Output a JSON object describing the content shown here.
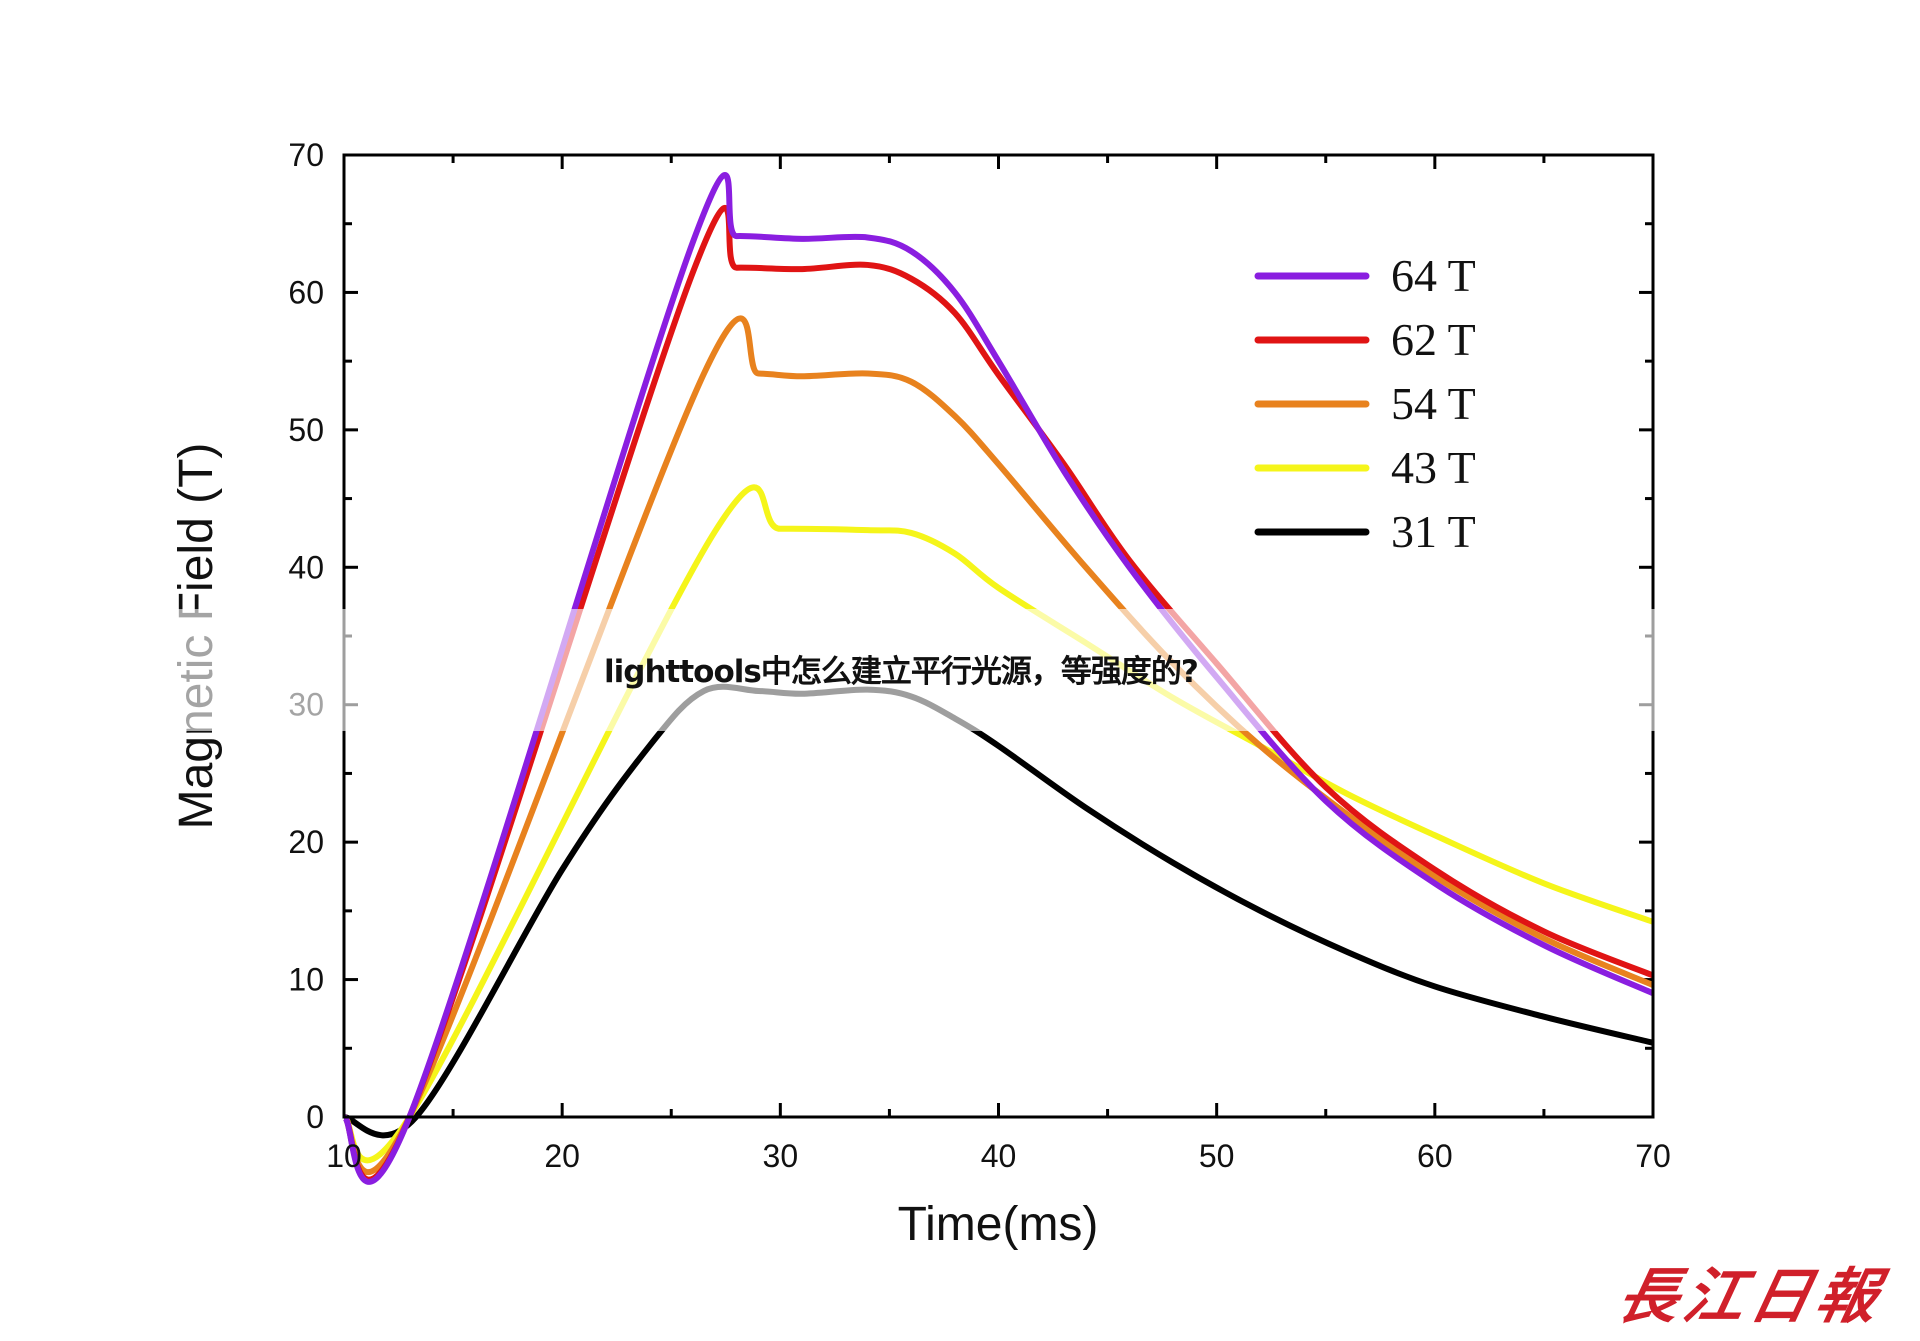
{
  "overlay_title": "lighttools中怎么建立平行光源，等强度的?",
  "watermark": "長江日報",
  "chart_data": {
    "type": "line",
    "title": "",
    "xlabel": "Time(ms)",
    "ylabel": "Magnetic Field (T)",
    "xlim": [
      10,
      70
    ],
    "ylim": [
      0,
      70
    ],
    "xticks": [
      10,
      20,
      30,
      40,
      50,
      60,
      70
    ],
    "yticks": [
      0,
      10,
      20,
      30,
      40,
      50,
      60,
      70
    ],
    "grid": false,
    "legend_position": "top-right",
    "series": [
      {
        "name": "64 T",
        "color": "#8a1ee0",
        "x": [
          10,
          13,
          26,
          28,
          31,
          34,
          36,
          38,
          40,
          43,
          46,
          50,
          55,
          60,
          65,
          70
        ],
        "y": [
          0,
          0,
          63.7,
          64.1,
          63.9,
          64,
          63,
          60,
          55,
          47,
          40,
          32,
          23,
          17,
          12.5,
          9
        ]
      },
      {
        "name": "62 T",
        "color": "#e01414",
        "x": [
          10,
          13,
          26,
          28,
          31,
          34,
          36,
          38,
          40,
          43,
          46,
          50,
          55,
          60,
          65,
          70
        ],
        "y": [
          0,
          0,
          61.5,
          61.8,
          61.7,
          62,
          61,
          58.5,
          54,
          47.5,
          40.5,
          33,
          24,
          18,
          13.5,
          10.3
        ]
      },
      {
        "name": "54 T",
        "color": "#e8821e",
        "x": [
          10,
          13,
          26.5,
          29,
          31,
          34,
          36,
          38,
          40,
          44,
          48,
          52,
          56,
          60,
          65,
          70
        ],
        "y": [
          0,
          0,
          54.1,
          54.1,
          53.9,
          54.1,
          53.5,
          51,
          47.5,
          40,
          33,
          27,
          22,
          17.5,
          13,
          9.6
        ]
      },
      {
        "name": "43 T",
        "color": "#f5f51a",
        "x": [
          10,
          13,
          27,
          30,
          34,
          36,
          38,
          40,
          44,
          48,
          52,
          56,
          60,
          65,
          70
        ],
        "y": [
          0,
          0,
          42.6,
          42.8,
          42.7,
          42.5,
          41,
          38.5,
          34.5,
          30.5,
          27,
          23.5,
          20.5,
          17,
          14.2
        ]
      },
      {
        "name": "31 T",
        "color": "#000000",
        "x": [
          10,
          13.3,
          20,
          24,
          26.5,
          29,
          31,
          34,
          36,
          38,
          40,
          44,
          48,
          52,
          56,
          60,
          65,
          70
        ],
        "y": [
          0,
          0,
          18,
          27,
          31,
          31,
          30.8,
          31.1,
          30.6,
          29,
          27,
          22.5,
          18.5,
          15,
          12,
          9.5,
          7.3,
          5.4
        ]
      }
    ]
  }
}
